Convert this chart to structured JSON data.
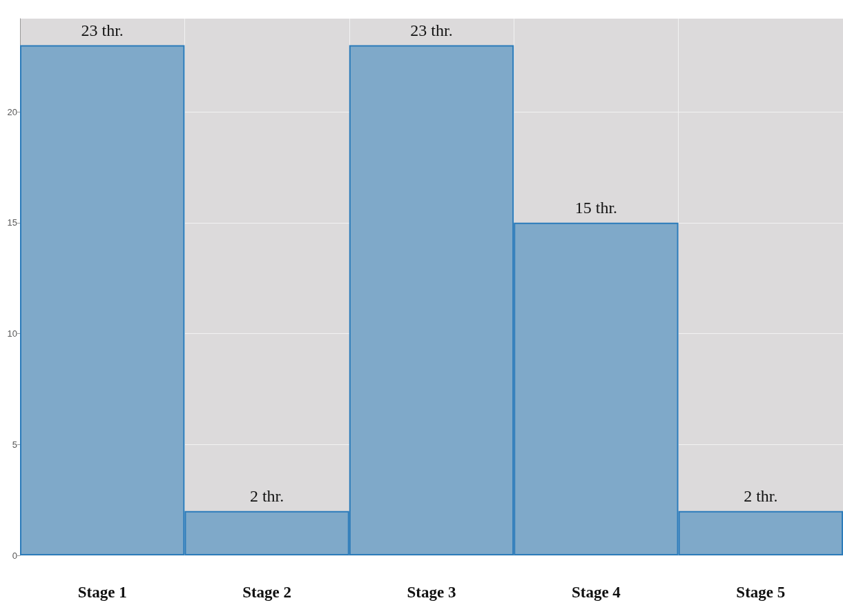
{
  "chart_data": {
    "type": "bar",
    "categories": [
      "Stage 1",
      "Stage 2",
      "Stage 3",
      "Stage 4",
      "Stage 5"
    ],
    "values": [
      23,
      2,
      23,
      15,
      2
    ],
    "value_labels": [
      "23 thr.",
      "2 thr.",
      "23 thr.",
      "15 thr.",
      "2 thr."
    ],
    "color": "#7fa9c9",
    "ylim": [
      0,
      24.2
    ],
    "yticks": [
      0,
      5,
      10,
      15,
      20
    ],
    "grid": true
  }
}
